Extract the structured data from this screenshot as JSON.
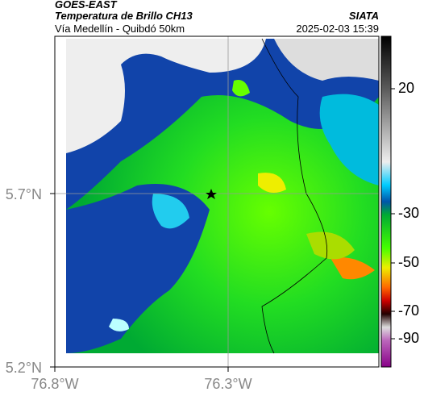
{
  "header": {
    "source": "GOES-EAST",
    "title": "Temperatura de Brillo CH13",
    "subtitle": "Vía Medellín - Quibdó 50km",
    "credit": "SIATA",
    "datetime": "2025-02-03 15:39"
  },
  "map": {
    "xticks": [
      {
        "value": -76.8,
        "label": "76.8°W"
      },
      {
        "value": -76.3,
        "label": "76.3°W"
      }
    ],
    "yticks": [
      {
        "value": 5.7,
        "label": "5.7°N"
      },
      {
        "value": 5.2,
        "label": "5.2°N"
      }
    ]
  },
  "colorbar": {
    "ticks": [
      20,
      -30,
      -50,
      -70,
      -90
    ]
  }
}
